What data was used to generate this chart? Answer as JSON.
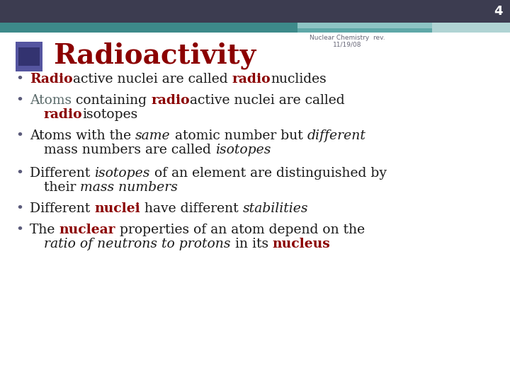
{
  "slide_number": "4",
  "title": "Radioactivity",
  "subtitle_line1": "Nuclear Chemistry  rev.",
  "subtitle_line2": "11/19/08",
  "title_color": "#8B0000",
  "header_bg_color": "#3c3c50",
  "header_teal_color": "#3d8a8a",
  "icon_color": "#4a4a7a",
  "red_color": "#8B0000",
  "dark_teal_text": "#3a5f5f",
  "black_color": "#1a1a1a",
  "bullet_color": "#5a5a7a",
  "lines": [
    [
      {
        "t": "Radio",
        "c": "#8B0000",
        "b": true,
        "i": false
      },
      {
        "t": "active nuclei are called ",
        "c": "#1a1a1a",
        "b": false,
        "i": false
      },
      {
        "t": "radio",
        "c": "#8B0000",
        "b": true,
        "i": false
      },
      {
        "t": "nuclides",
        "c": "#1a1a1a",
        "b": false,
        "i": false
      }
    ],
    [
      {
        "t": "Atoms",
        "c": "#5a6a6a",
        "b": false,
        "i": false
      },
      {
        "t": " containing ",
        "c": "#1a1a1a",
        "b": false,
        "i": false
      },
      {
        "t": "radio",
        "c": "#8B0000",
        "b": true,
        "i": false
      },
      {
        "t": "active nuclei are called",
        "c": "#1a1a1a",
        "b": false,
        "i": false
      }
    ],
    [
      {
        "t": "radio",
        "c": "#8B0000",
        "b": true,
        "i": false
      },
      {
        "t": "isotopes",
        "c": "#1a1a1a",
        "b": false,
        "i": false
      }
    ],
    [
      {
        "t": "Atoms with the ",
        "c": "#1a1a1a",
        "b": false,
        "i": false
      },
      {
        "t": "same",
        "c": "#1a1a1a",
        "b": false,
        "i": true
      },
      {
        "t": " atomic number but ",
        "c": "#1a1a1a",
        "b": false,
        "i": false
      },
      {
        "t": "different",
        "c": "#1a1a1a",
        "b": false,
        "i": true
      }
    ],
    [
      {
        "t": "mass numbers are called ",
        "c": "#1a1a1a",
        "b": false,
        "i": false
      },
      {
        "t": "isotopes",
        "c": "#1a1a1a",
        "b": false,
        "i": true
      }
    ],
    [
      {
        "t": "Different ",
        "c": "#1a1a1a",
        "b": false,
        "i": false
      },
      {
        "t": "isotopes",
        "c": "#1a1a1a",
        "b": false,
        "i": true
      },
      {
        "t": " of an element are distinguished by",
        "c": "#1a1a1a",
        "b": false,
        "i": false
      }
    ],
    [
      {
        "t": "their ",
        "c": "#1a1a1a",
        "b": false,
        "i": false
      },
      {
        "t": "mass numbers",
        "c": "#1a1a1a",
        "b": false,
        "i": true
      }
    ],
    [
      {
        "t": "Different ",
        "c": "#1a1a1a",
        "b": false,
        "i": false
      },
      {
        "t": "nuclei",
        "c": "#8B0000",
        "b": true,
        "i": false
      },
      {
        "t": " have different ",
        "c": "#1a1a1a",
        "b": false,
        "i": false
      },
      {
        "t": "stabilities",
        "c": "#1a1a1a",
        "b": false,
        "i": true
      }
    ],
    [
      {
        "t": "The ",
        "c": "#1a1a1a",
        "b": false,
        "i": false
      },
      {
        "t": "nuclear",
        "c": "#8B0000",
        "b": true,
        "i": false
      },
      {
        "t": " properties of an atom depend on the",
        "c": "#1a1a1a",
        "b": false,
        "i": false
      }
    ],
    [
      {
        "t": "ratio of neutrons to protons",
        "c": "#1a1a1a",
        "b": false,
        "i": true
      },
      {
        "t": " in its ",
        "c": "#1a1a1a",
        "b": false,
        "i": false
      },
      {
        "t": "nucleus",
        "c": "#8B0000",
        "b": true,
        "i": false
      }
    ]
  ],
  "line_has_bullet": [
    true,
    true,
    false,
    true,
    false,
    true,
    false,
    true,
    true,
    false
  ],
  "line_is_continuation": [
    false,
    false,
    true,
    false,
    true,
    false,
    true,
    false,
    false,
    true
  ]
}
